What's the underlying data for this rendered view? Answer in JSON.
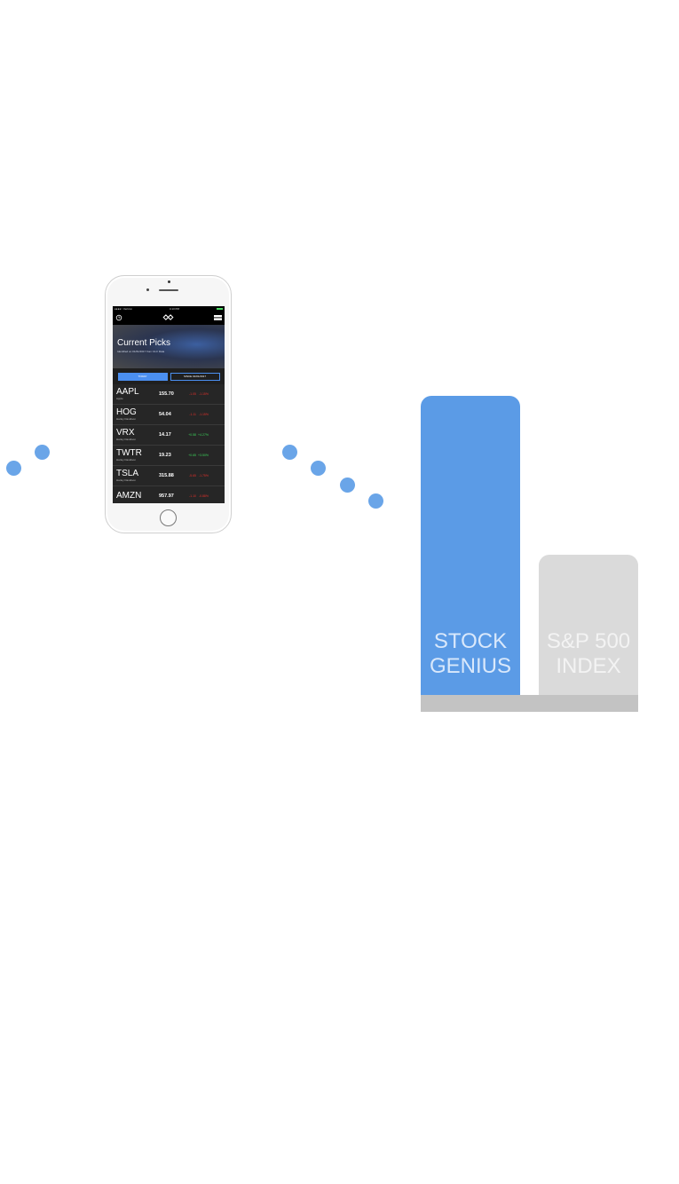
{
  "phone": {
    "status": {
      "carrier": "●●●●○ Verizon",
      "time": "4:13 PM"
    },
    "hero": {
      "title": "Current Picks",
      "subtitle": "Identified on 01/01/2017 from 13-F Data"
    },
    "tabs": [
      {
        "label": "TODAY"
      },
      {
        "label": "SINCE 01/01/2017"
      }
    ],
    "rows": [
      {
        "symbol": "AAPL",
        "name": "Apple",
        "price": "155.70",
        "change": "-1.05",
        "pct": "-1.15%",
        "trend": "neg"
      },
      {
        "symbol": "HOG",
        "name": "Harley Davidson",
        "price": "54.04",
        "change": "-1.11",
        "pct": "-1.15%",
        "trend": "neg"
      },
      {
        "symbol": "VRX",
        "name": "Harley Davidson",
        "price": "14.17",
        "change": "+0.58",
        "pct": "+4.27%",
        "trend": "pos"
      },
      {
        "symbol": "TWTR",
        "name": "Harley Davidson",
        "price": "19.23",
        "change": "+0.65",
        "pct": "+3.50%",
        "trend": "pos"
      },
      {
        "symbol": "TSLA",
        "name": "Harley Davidson",
        "price": "315.88",
        "change": "-5.65",
        "pct": "-1.75%",
        "trend": "neg"
      },
      {
        "symbol": "AMZN",
        "name": "",
        "price": "957.97",
        "change": "-1.10",
        "pct": "-0.88%",
        "trend": "neg"
      }
    ]
  },
  "chart": {
    "bars": [
      {
        "label": "STOCK\nGENIUS",
        "color": "#5b9be6"
      },
      {
        "label": "S&P 500\nINDEX",
        "color": "#dadada"
      }
    ]
  }
}
